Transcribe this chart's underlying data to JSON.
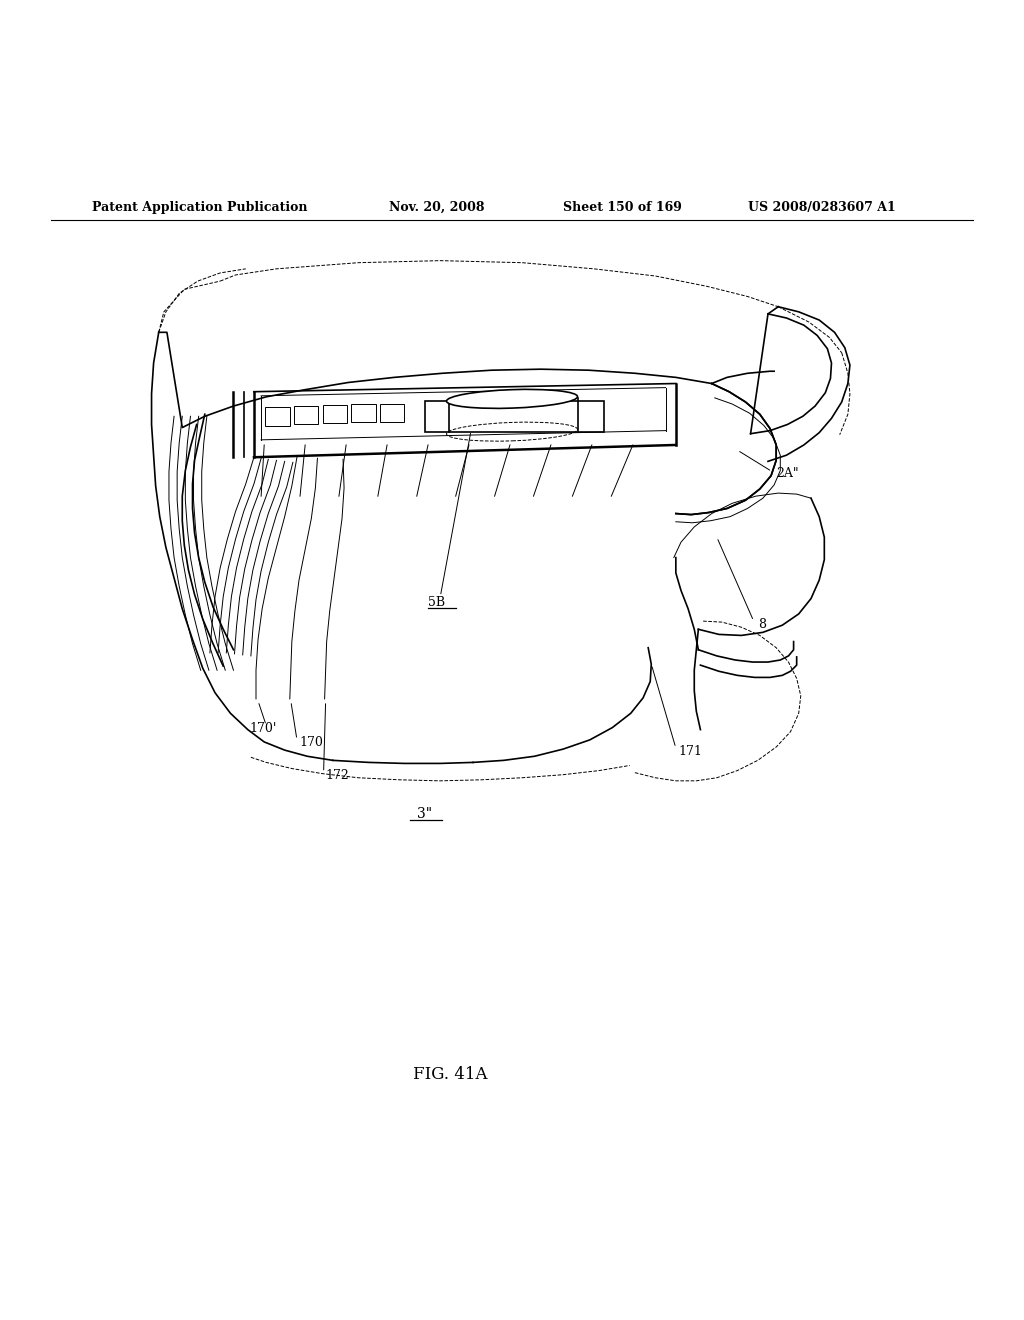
{
  "background_color": "#ffffff",
  "header_text": "Patent Application Publication",
  "header_date": "Nov. 20, 2008",
  "header_sheet": "Sheet 150 of 169",
  "header_patent": "US 2008/0283607 A1",
  "figure_label": "FIG. 41A",
  "labels": {
    "2A_double_prime": "2A\"",
    "5B": "5B",
    "8": "8",
    "170_prime": "170'",
    "170": "170",
    "171": "171",
    "172": "172",
    "3_double_prime": "3\""
  }
}
